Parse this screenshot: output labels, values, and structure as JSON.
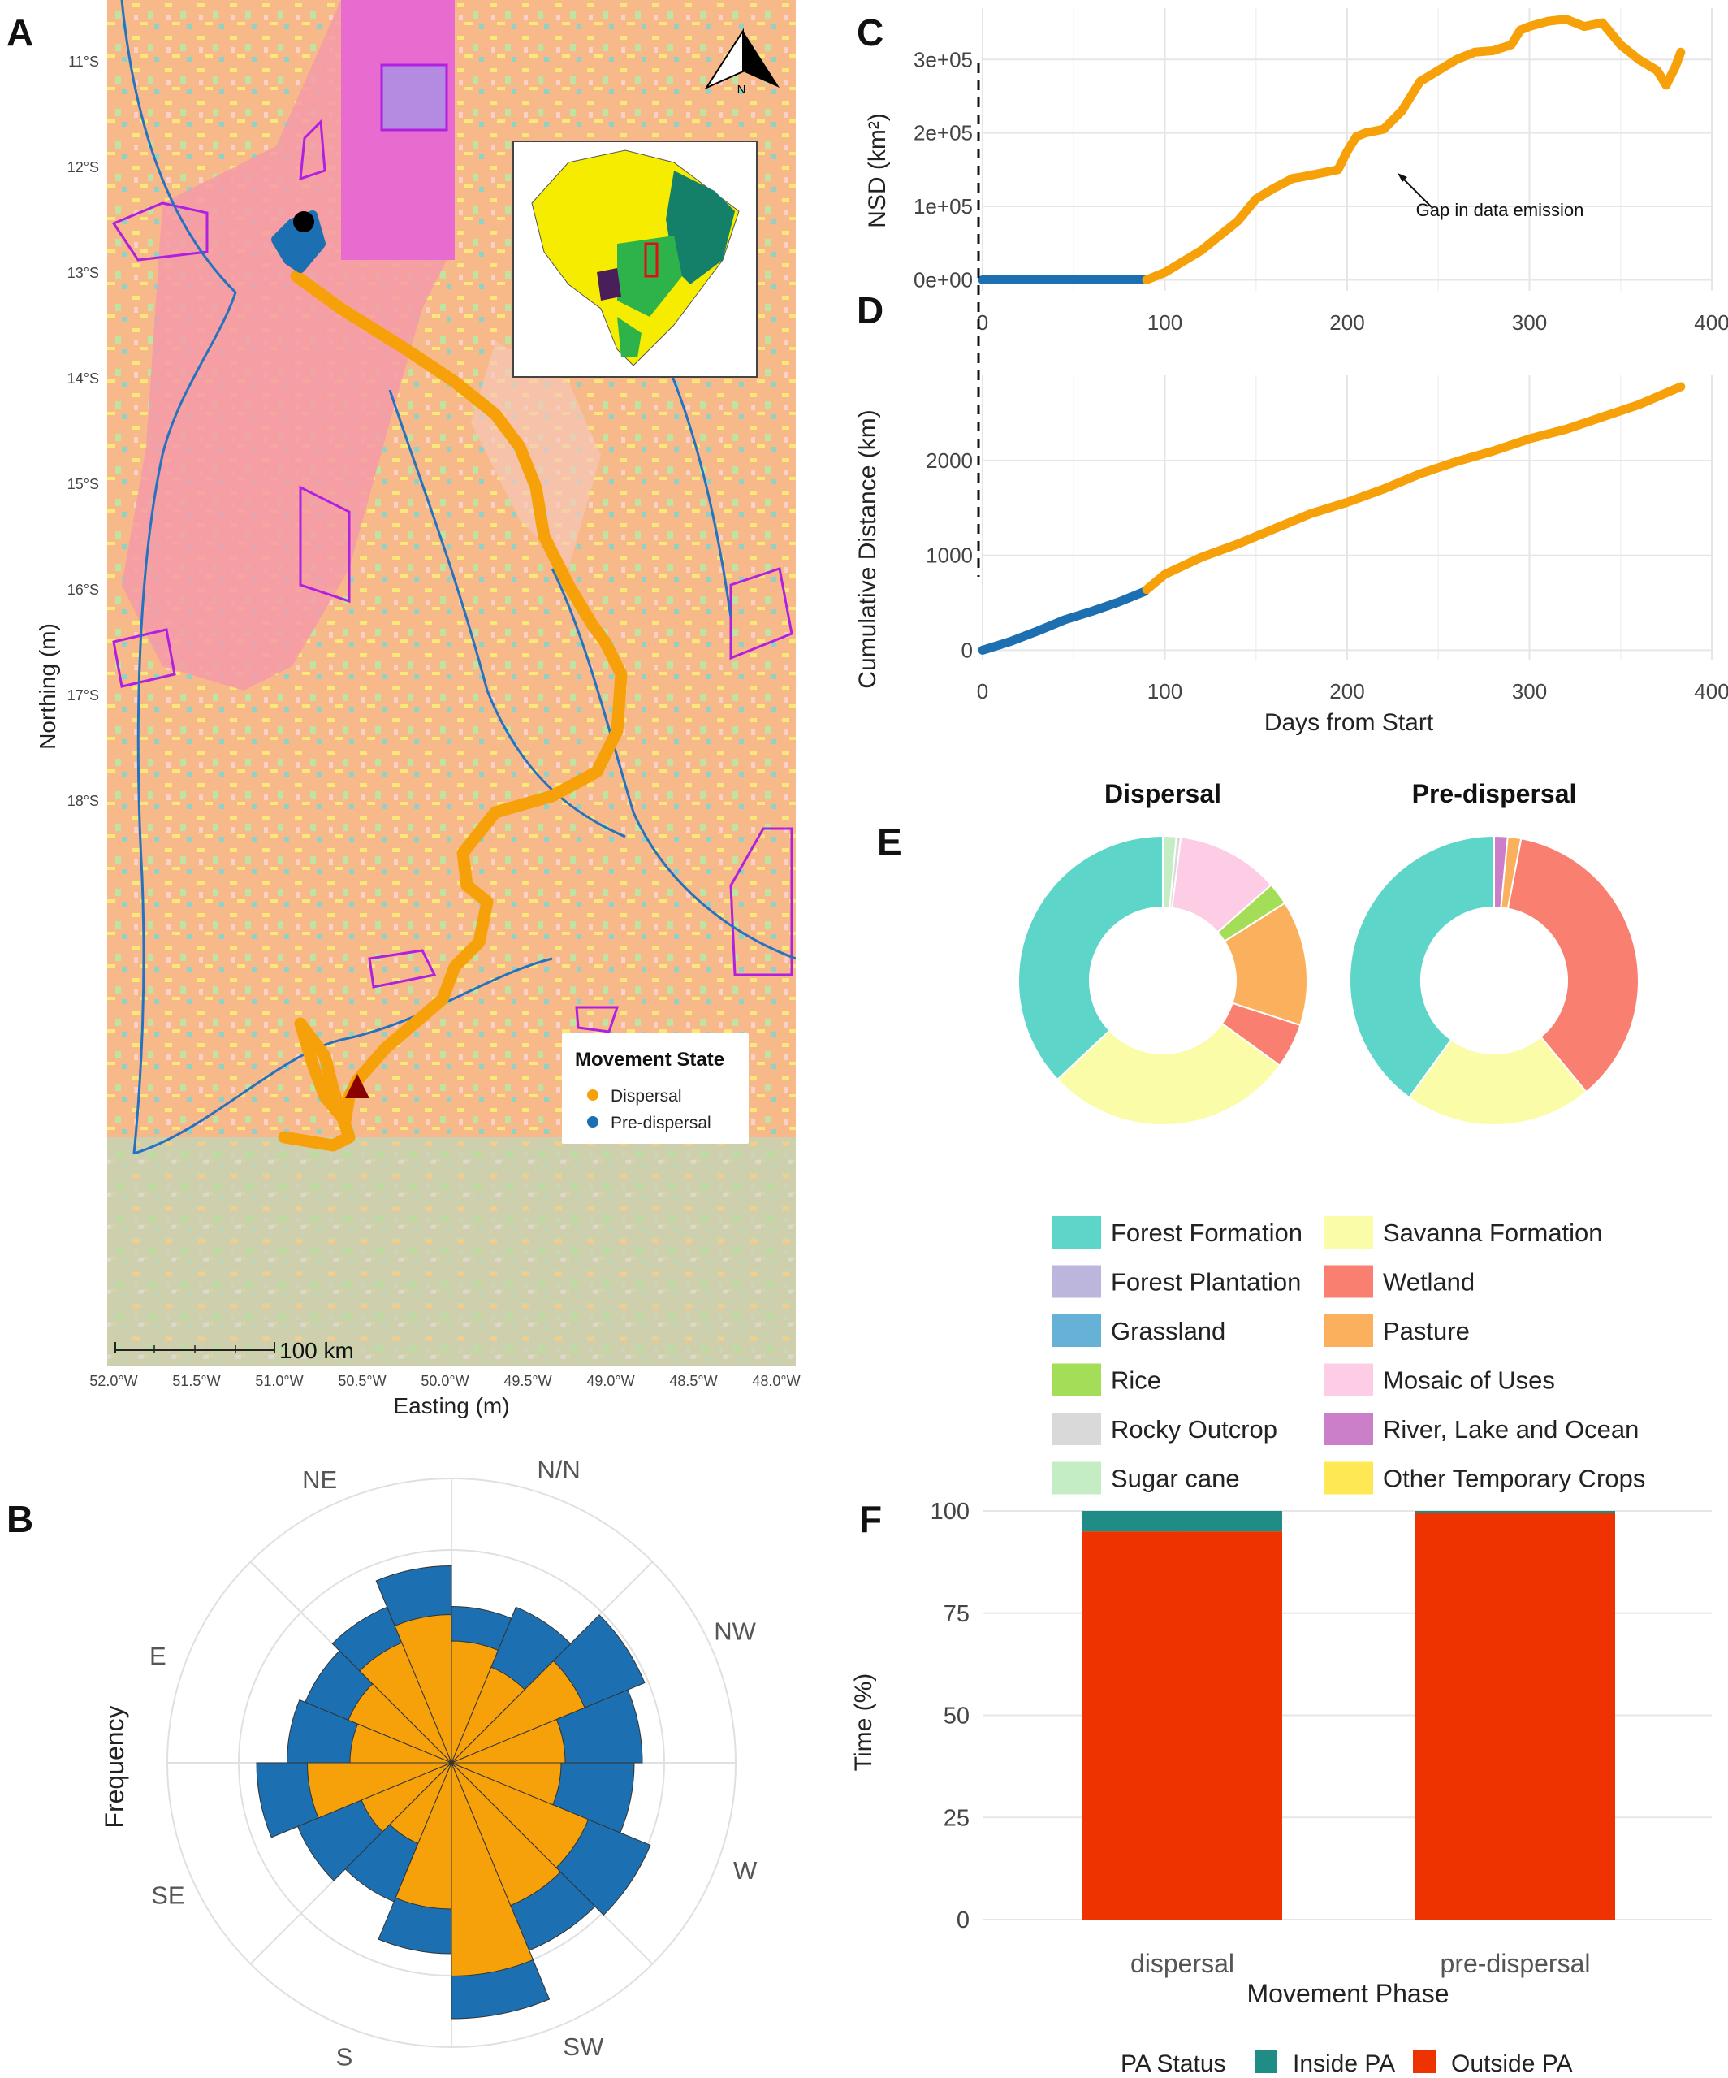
{
  "panels": {
    "A": "A",
    "B": "B",
    "C": "C",
    "D": "D",
    "E": "E",
    "F": "F"
  },
  "colors": {
    "dispersal": "#F7A10A",
    "pre_dispersal": "#1C6FB0",
    "inside_pa": "#1F8C86",
    "outside_pa": "#EE3300",
    "pa_boundary": "#B020E0",
    "river": "#2472C0"
  },
  "map": {
    "north_label": "N",
    "scale_label": "100 km",
    "xlabel": "Easting (m)",
    "ylabel": "Northing (m)",
    "lat_ticks": [
      "11°S",
      "12°S",
      "13°S",
      "14°S",
      "15°S",
      "16°S",
      "17°S",
      "18°S"
    ],
    "lon_ticks": [
      "52.0°W",
      "51.5°W",
      "51.0°W",
      "50.5°W",
      "50.0°W",
      "49.5°W",
      "49.0°W",
      "48.5°W",
      "48.0°W"
    ],
    "legend": {
      "title": "Movement State",
      "items": [
        {
          "label": "Dispersal",
          "color": "#F7A10A"
        },
        {
          "label": "Pre-dispersal",
          "color": "#1C6FB0"
        }
      ]
    },
    "start_marker": "black-circle",
    "end_marker": "dark-red-triangle"
  },
  "chart_data": [
    {
      "id": "C",
      "type": "line",
      "xlabel": "",
      "ylabel": "NSD (km²)",
      "x_ticks": [
        "0",
        "100",
        "200",
        "300",
        "400"
      ],
      "y_ticks": [
        "0e+00",
        "1e+05",
        "2e+05",
        "3e+05"
      ],
      "xlim": [
        0,
        400
      ],
      "ylim": [
        -15000,
        370000
      ],
      "annotation": "Gap in data emission",
      "series": [
        {
          "name": "Pre-dispersal",
          "x": [
            0,
            89
          ],
          "y": [
            0,
            0
          ]
        },
        {
          "name": "Dispersal",
          "x": [
            90,
            100,
            110,
            120,
            130,
            140,
            150,
            160,
            170,
            175,
            185,
            195,
            200,
            205,
            210,
            220,
            230,
            240,
            250,
            260,
            270,
            280,
            290,
            295,
            300,
            310,
            320,
            330,
            340,
            350,
            360,
            370,
            375,
            380,
            383
          ],
          "y": [
            0,
            10000,
            25000,
            40000,
            60000,
            80000,
            110000,
            125000,
            138000,
            140000,
            145000,
            150000,
            175000,
            195000,
            200000,
            205000,
            230000,
            270000,
            285000,
            300000,
            310000,
            312000,
            320000,
            340000,
            345000,
            352000,
            355000,
            345000,
            350000,
            320000,
            300000,
            285000,
            265000,
            290000,
            310000
          ]
        }
      ]
    },
    {
      "id": "D",
      "type": "line",
      "xlabel": "Days from Start",
      "ylabel": "Cumulative Distance (km)",
      "x_ticks": [
        "0",
        "100",
        "200",
        "300",
        "400"
      ],
      "y_ticks": [
        "0",
        "1000",
        "2000"
      ],
      "xlim": [
        0,
        400
      ],
      "ylim": [
        -100,
        2900
      ],
      "series": [
        {
          "name": "Pre-dispersal",
          "x": [
            0,
            15,
            30,
            45,
            60,
            75,
            89
          ],
          "y": [
            0,
            90,
            200,
            320,
            410,
            510,
            620
          ]
        },
        {
          "name": "Dispersal",
          "x": [
            90,
            100,
            120,
            140,
            160,
            180,
            200,
            220,
            240,
            260,
            280,
            300,
            320,
            340,
            360,
            383
          ],
          "y": [
            640,
            800,
            980,
            1120,
            1280,
            1440,
            1560,
            1700,
            1860,
            1990,
            2100,
            2230,
            2330,
            2460,
            2590,
            2780
          ]
        }
      ]
    },
    {
      "id": "B",
      "type": "rose",
      "ylabel": "Frequency",
      "direction_labels": [
        "N/N",
        "NW",
        "W",
        "SW",
        "S",
        "SE",
        "E",
        "NE"
      ],
      "sectors": 16,
      "series": [
        {
          "name": "Dispersal",
          "values": [
            7.3,
            6.4,
            5.5,
            5.0,
            7.1,
            4.8,
            4.3,
            7.2,
            10.5,
            7.6,
            7.3,
            5.4,
            5.6,
            7.1,
            5.1,
            6.0
          ]
        },
        {
          "name": "Pre-dispersal",
          "values": [
            9.7,
            8.3,
            7.8,
            8.1,
            9.6,
            8.2,
            7.4,
            9.4,
            12.6,
            10.0,
            10.6,
            9.0,
            9.4,
            10.3,
            8.3,
            7.7
          ]
        }
      ]
    },
    {
      "id": "E",
      "type": "pie",
      "charts": [
        {
          "title": "Dispersal",
          "slices": [
            {
              "label": "Sugar cane",
              "value": 1.5
            },
            {
              "label": "Rocky Outcrop",
              "value": 0.5
            },
            {
              "label": "Mosaic of Uses",
              "value": 11.5
            },
            {
              "label": "Rice",
              "value": 2.5
            },
            {
              "label": "Pasture",
              "value": 14
            },
            {
              "label": "Wetland",
              "value": 5
            },
            {
              "label": "Savanna Formation",
              "value": 28
            },
            {
              "label": "Forest Formation",
              "value": 37
            }
          ]
        },
        {
          "title": "Pre-dispersal",
          "slices": [
            {
              "label": "River, Lake and Ocean",
              "value": 1.5
            },
            {
              "label": "Pasture",
              "value": 1.5
            },
            {
              "label": "Wetland",
              "value": 36
            },
            {
              "label": "Savanna Formation",
              "value": 21
            },
            {
              "label": "Forest Formation",
              "value": 40
            }
          ]
        }
      ],
      "legend": [
        {
          "label": "Forest Formation",
          "color": "#5DD5C8"
        },
        {
          "label": "Savanna Formation",
          "color": "#FBFCA8"
        },
        {
          "label": "Forest Plantation",
          "color": "#BDB6DC"
        },
        {
          "label": "Wetland",
          "color": "#F98070"
        },
        {
          "label": "Grassland",
          "color": "#66B2D6"
        },
        {
          "label": "Pasture",
          "color": "#FBB05E"
        },
        {
          "label": "Rice",
          "color": "#A4DD58"
        },
        {
          "label": "Mosaic of Uses",
          "color": "#FCCDE5"
        },
        {
          "label": "Rocky Outcrop",
          "color": "#D9D9D9"
        },
        {
          "label": "River, Lake and Ocean",
          "color": "#CC7FC9"
        },
        {
          "label": "Sugar cane",
          "color": "#C4EDC4"
        },
        {
          "label": "Other Temporary Crops",
          "color": "#FEE854"
        }
      ]
    },
    {
      "id": "F",
      "type": "bar",
      "stacked": true,
      "categories": [
        "dispersal",
        "pre-dispersal"
      ],
      "xlabel": "Movement Phase",
      "ylabel": "Time (%)",
      "y_ticks": [
        "0",
        "25",
        "50",
        "75",
        "100"
      ],
      "ylim": [
        0,
        100
      ],
      "series": [
        {
          "name": "Outside PA",
          "values": [
            95,
            99.5
          ]
        },
        {
          "name": "Inside PA",
          "values": [
            5,
            0.5
          ]
        }
      ],
      "legend_title": "PA Status"
    }
  ]
}
